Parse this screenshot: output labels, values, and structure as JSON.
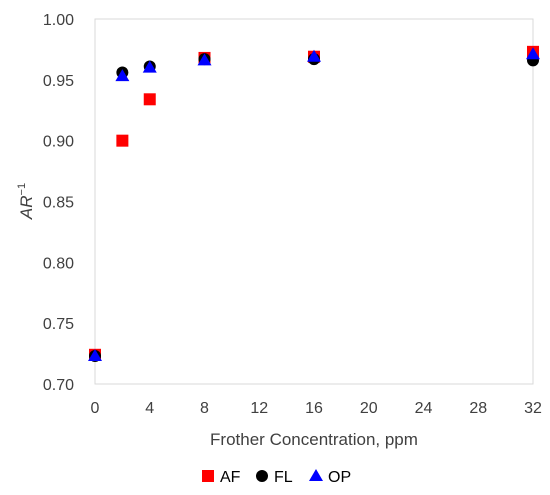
{
  "chart_data": {
    "type": "scatter",
    "title": "",
    "xlabel": "Frother Concentration, ppm",
    "ylabel": {
      "base": "AR",
      "superscript": "−1"
    },
    "xlim": [
      0,
      32
    ],
    "ylim": [
      0.7,
      1.0
    ],
    "x_ticks": [
      0,
      4,
      8,
      12,
      16,
      20,
      24,
      28,
      32
    ],
    "y_ticks": [
      0.7,
      0.75,
      0.8,
      0.85,
      0.9,
      0.95,
      1.0
    ],
    "x_tick_labels": [
      "0",
      "4",
      "8",
      "12",
      "16",
      "20",
      "24",
      "28",
      "32"
    ],
    "y_tick_labels": [
      "0.70",
      "0.75",
      "0.80",
      "0.85",
      "0.90",
      "0.95",
      "1.00"
    ],
    "grid": false,
    "legend_position": "bottom",
    "series": [
      {
        "name": "AF",
        "marker": "square",
        "color": "#ff0000",
        "x": [
          0,
          2,
          4,
          8,
          16,
          32
        ],
        "y": [
          0.724,
          0.9,
          0.934,
          0.968,
          0.969,
          0.973
        ]
      },
      {
        "name": "FL",
        "marker": "circle",
        "color": "#000000",
        "x": [
          0,
          2,
          4,
          8,
          16,
          32
        ],
        "y": [
          0.723,
          0.956,
          0.961,
          0.967,
          0.967,
          0.966
        ]
      },
      {
        "name": "OP",
        "marker": "triangle",
        "color": "#0000ff",
        "x": [
          0,
          2,
          4,
          8,
          16,
          32
        ],
        "y": [
          0.723,
          0.953,
          0.96,
          0.966,
          0.969,
          0.971
        ]
      }
    ]
  }
}
